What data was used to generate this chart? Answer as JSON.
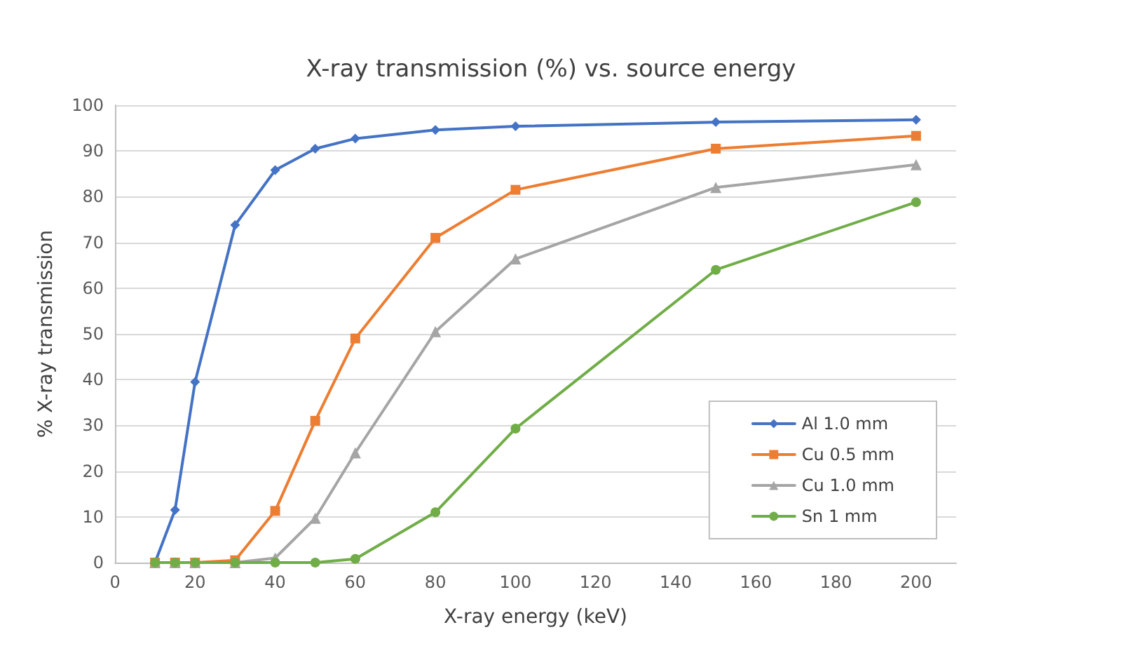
{
  "chart_data": {
    "type": "line",
    "title": "X-ray transmission (%) vs. source energy",
    "xlabel": "X-ray energy (keV)",
    "ylabel": "% X-ray transmission",
    "x": [
      10,
      15,
      20,
      30,
      40,
      50,
      60,
      80,
      100,
      150,
      200
    ],
    "series": [
      {
        "name": "Al 1.0 mm",
        "color": "#4472c4",
        "marker": "diamond",
        "values": [
          0,
          11.5,
          39.5,
          73.8,
          85.8,
          90.5,
          92.7,
          94.6,
          95.4,
          96.3,
          96.8
        ]
      },
      {
        "name": "Cu 0.5 mm",
        "color": "#ed7d31",
        "marker": "square",
        "values": [
          0,
          0,
          0,
          0.5,
          11.3,
          31,
          49,
          71,
          81.5,
          90.5,
          93.3
        ]
      },
      {
        "name": "Cu 1.0 mm",
        "color": "#a5a5a5",
        "marker": "triangle",
        "values": [
          0,
          0,
          0,
          0,
          1,
          9.7,
          24,
          50.5,
          66.4,
          82,
          87
        ]
      },
      {
        "name": "Sn 1 mm",
        "color": "#70ad47",
        "marker": "circle",
        "values": [
          0,
          0,
          0,
          0,
          0,
          0,
          0.8,
          11,
          29.3,
          64,
          78.8
        ]
      }
    ],
    "xlim": [
      0,
      210
    ],
    "xticks": [
      0,
      20,
      40,
      60,
      80,
      100,
      120,
      140,
      160,
      180,
      200
    ],
    "ylim": [
      0,
      100
    ],
    "yticks": [
      0,
      10,
      20,
      30,
      40,
      50,
      60,
      70,
      80,
      90,
      100
    ],
    "grid": "y",
    "legend": "bottom right",
    "line_style": "solid"
  }
}
